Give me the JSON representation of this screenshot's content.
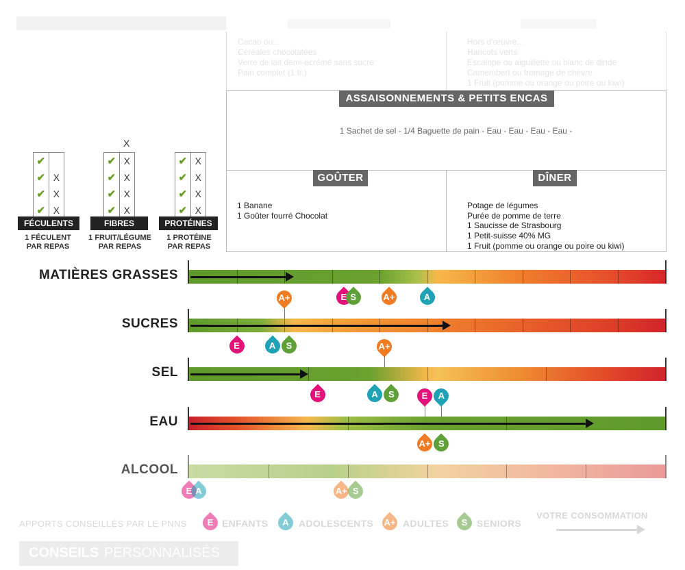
{
  "colors": {
    "enfants": "#e2127a",
    "adolescents": "#1fa2b5",
    "adultes": "#f07b22",
    "seniors": "#5fa038"
  },
  "menu": {
    "top_left_lines": [
      "Cacao ou...",
      "Céréales chocolatées",
      "Verre de lait demi-écrémé sans sucre",
      "Pain complet (1 tr.)"
    ],
    "top_right_lines": [
      "Hors d'œuvre...",
      "Haricots verts",
      "Escalope ou aiguillette ou blanc de dinde",
      "Camembert ou fromage de chèvre",
      "1 Fruit (pomme ou orange ou poire ou kiwi)"
    ],
    "assaisonnements_title": "ASSAISONNEMENTS & PETITS ENCAS",
    "assaisonnements_text": "1 Sachet de sel - 1/4 Baguette de pain - Eau - Eau - Eau - Eau -",
    "gouter_title": "GOÛTER",
    "gouter_lines": [
      "1 Banane",
      "1 Goûter fourré Chocolat"
    ],
    "diner_title": "DÎNER",
    "diner_lines": [
      "Potage de légumes",
      "Purée de pomme de terre",
      "1 Saucisse de Strasbourg",
      "1 Petit-suisse 40% MG",
      "1 Fruit (pomme ou orange ou poire ou kiwi)"
    ]
  },
  "categories": [
    {
      "label": "FÉCULENTS",
      "sub1": "1 FÉCULENT",
      "sub2": "PAR REPAS",
      "extra_x": "",
      "rows": [
        [
          "✔",
          ""
        ],
        [
          "✔",
          "X"
        ],
        [
          "✔",
          "X"
        ],
        [
          "✔",
          "X"
        ]
      ]
    },
    {
      "label": "FIBRES",
      "sub1": "1 FRUIT/LÉGUME",
      "sub2": "PAR REPAS",
      "extra_x": "X",
      "rows": [
        [
          "✔",
          "X"
        ],
        [
          "✔",
          "X"
        ],
        [
          "✔",
          "X"
        ],
        [
          "✔",
          "X"
        ]
      ]
    },
    {
      "label": "PROTÉINES",
      "sub1": "1 PROTÉINE",
      "sub2": "PAR REPAS",
      "extra_x": "",
      "rows": [
        [
          "✔",
          "X"
        ],
        [
          "✔",
          "X"
        ],
        [
          "✔",
          "X"
        ],
        [
          "✔",
          "X"
        ]
      ]
    }
  ],
  "nutrients": [
    {
      "label": "MATIÈRES GRASSES",
      "consumption_fraction": 0.22,
      "markers": [
        {
          "letter": "E",
          "group": "enfants",
          "fraction": 0.325
        },
        {
          "letter": "S",
          "group": "seniors",
          "fraction": 0.345
        },
        {
          "letter": "A+",
          "group": "adultes",
          "fraction": 0.42
        },
        {
          "letter": "A",
          "group": "adolescents",
          "fraction": 0.5
        }
      ]
    },
    {
      "label": "SUCRES",
      "consumption_fraction": 0.55,
      "markers": [
        {
          "letter": "A+",
          "group": "adultes",
          "fraction": 0.2
        },
        {
          "letter": "E",
          "group": "enfants",
          "fraction": 0.1
        },
        {
          "letter": "A",
          "group": "adolescents",
          "fraction": 0.175
        },
        {
          "letter": "S",
          "group": "seniors",
          "fraction": 0.21
        }
      ]
    },
    {
      "label": "SEL",
      "consumption_fraction": 0.25,
      "markers": [
        {
          "letter": "A+",
          "group": "adultes",
          "fraction": 0.41
        },
        {
          "letter": "E",
          "group": "enfants",
          "fraction": 0.27
        },
        {
          "letter": "A",
          "group": "adolescents",
          "fraction": 0.39
        },
        {
          "letter": "S",
          "group": "seniors",
          "fraction": 0.425
        }
      ]
    },
    {
      "label": "EAU",
      "consumption_fraction": 0.85,
      "markers": [
        {
          "letter": "E",
          "group": "enfants",
          "fraction": 0.495
        },
        {
          "letter": "A",
          "group": "adolescents",
          "fraction": 0.53
        },
        {
          "letter": "A+",
          "group": "adultes",
          "fraction": 0.495
        },
        {
          "letter": "S",
          "group": "seniors",
          "fraction": 0.53
        }
      ]
    },
    {
      "label": "ALCOOL",
      "consumption_fraction": 0,
      "markers": [
        {
          "letter": "E",
          "group": "enfants",
          "fraction": 0
        },
        {
          "letter": "A",
          "group": "adolescents",
          "fraction": 0.02
        },
        {
          "letter": "A+",
          "group": "adultes",
          "fraction": 0.32
        },
        {
          "letter": "S",
          "group": "seniors",
          "fraction": 0.35
        }
      ]
    }
  ],
  "legend": {
    "title": "APPORTS CONSEILLÉS PAR LE PNNS",
    "enfants": "ENFANTS",
    "adolescents": "ADOLESCENTS",
    "adultes": "ADULTES",
    "seniors": "SENIORS",
    "consumption": "VOTRE CONSOMMATION"
  },
  "conseils": {
    "bold": "CONSEILS",
    "rest": " PERSONNALISÉS"
  }
}
